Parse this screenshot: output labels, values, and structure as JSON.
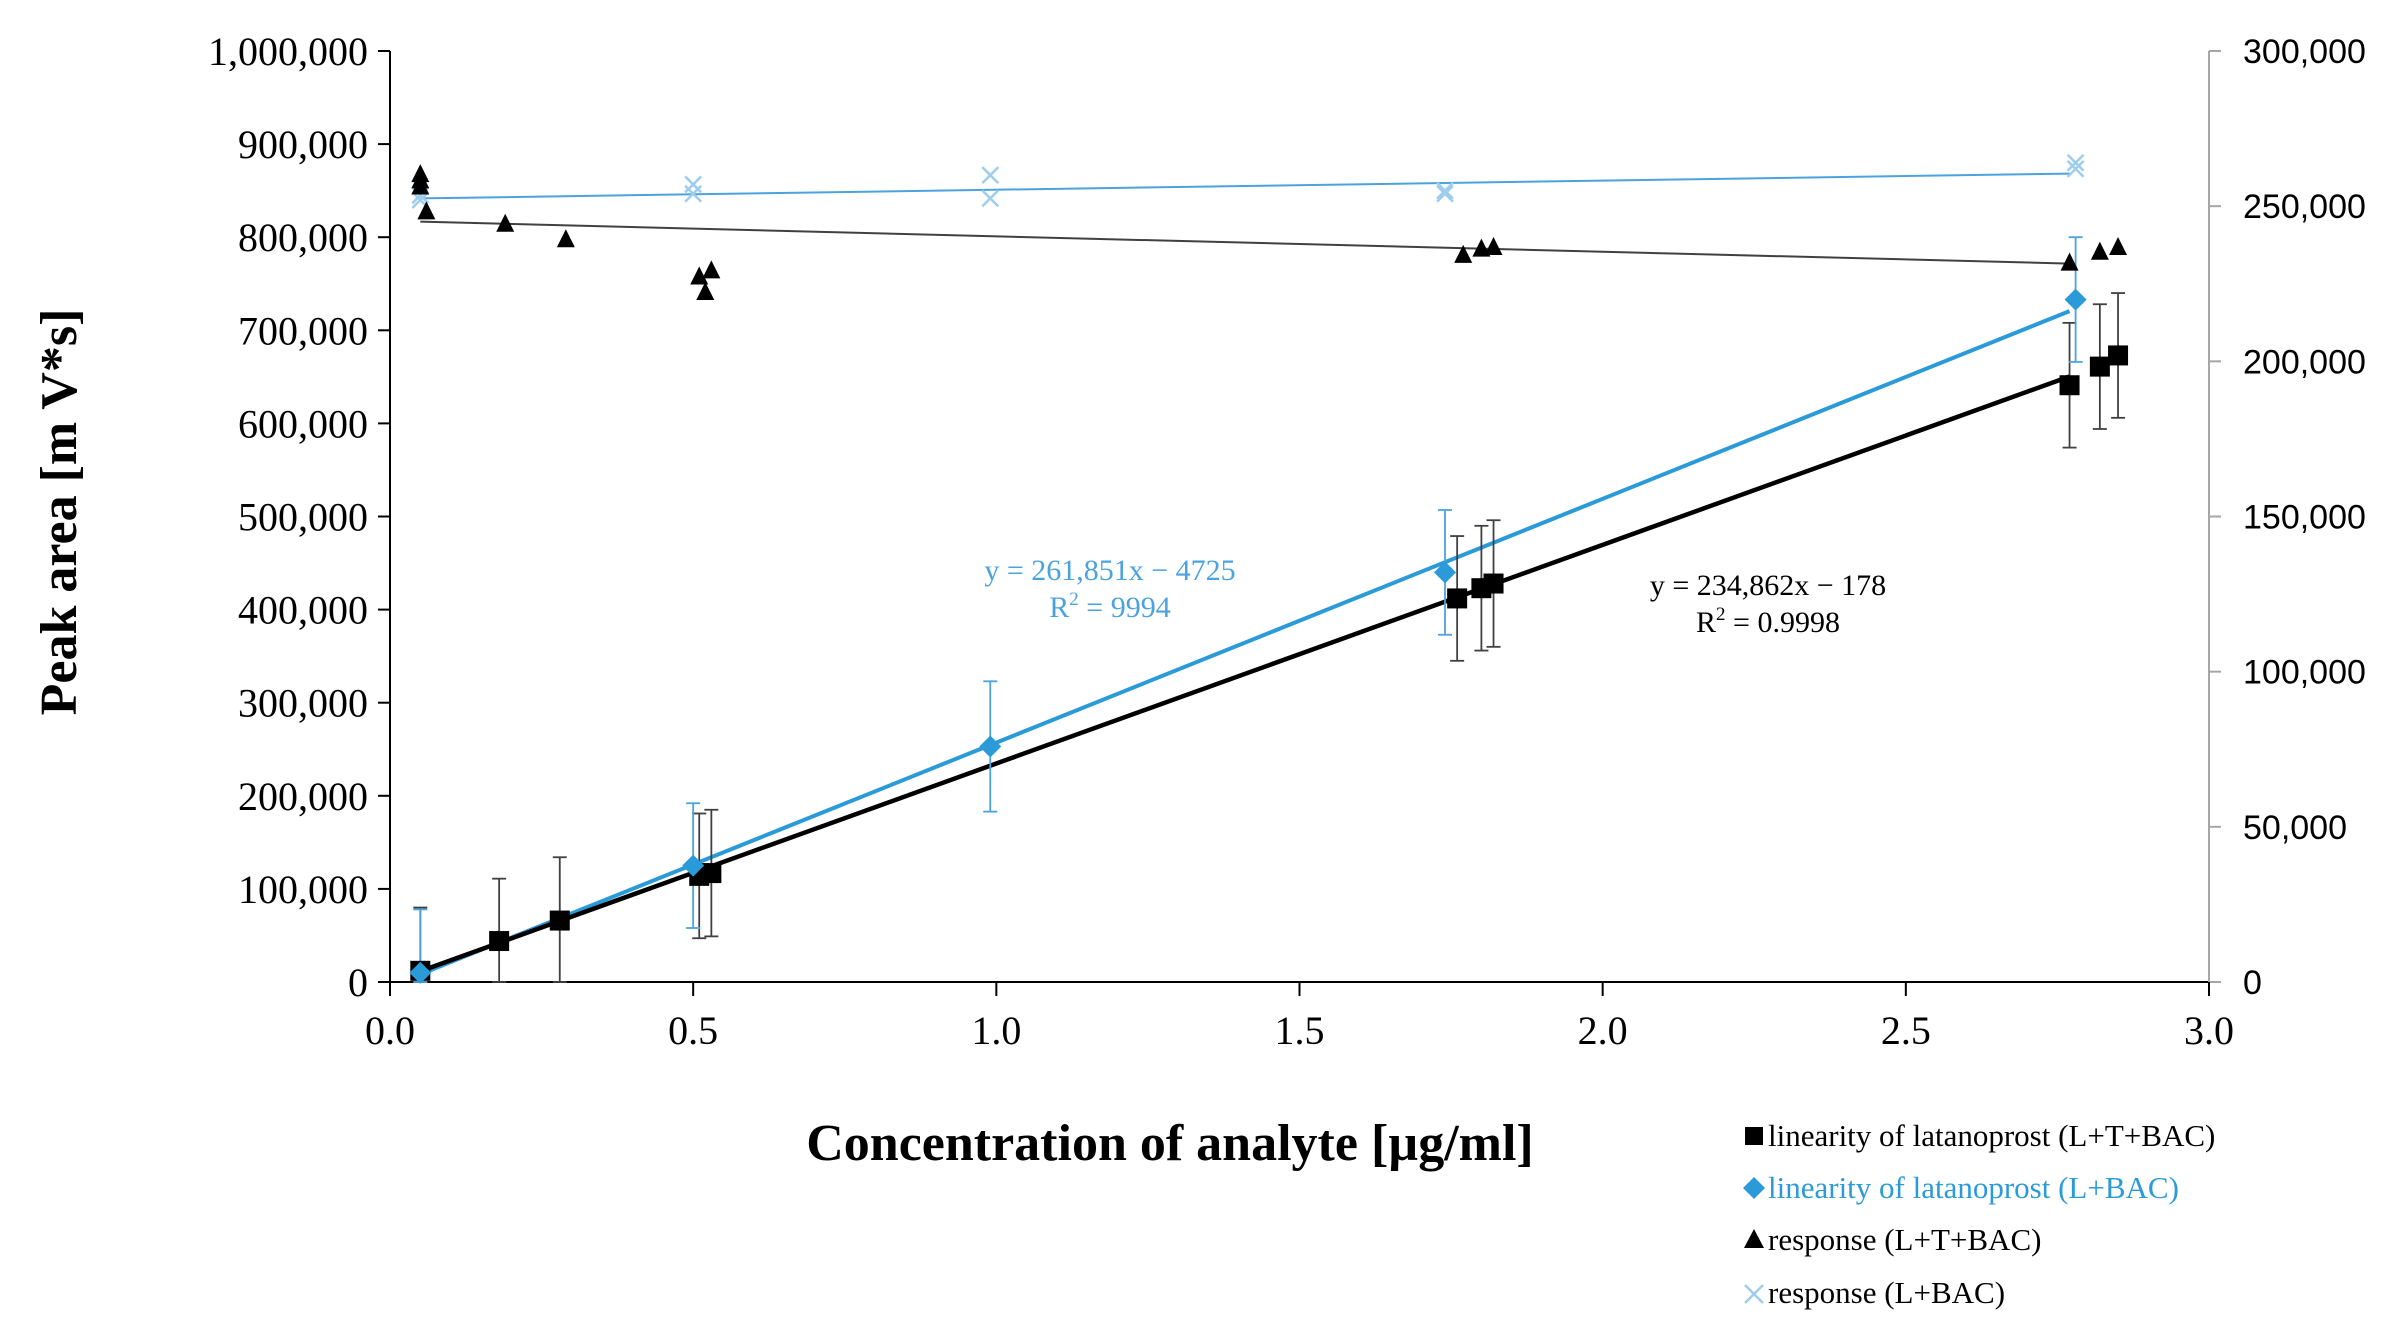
{
  "chart_data": {
    "type": "scatter",
    "xlabel": "Concentration of analyte [µg/ml]",
    "ylabel": "Peak area  [m V*s]",
    "xlim": [
      0,
      3
    ],
    "ylim_left": [
      0,
      1000000
    ],
    "ylim_right": [
      0,
      300000
    ],
    "x_ticks": [
      "0.0",
      "0.5",
      "1.0",
      "1.5",
      "2.0",
      "2.5",
      "3.0"
    ],
    "y_left_ticks": [
      "0",
      "100,000",
      "200,000",
      "300,000",
      "400,000",
      "500,000",
      "600,000",
      "700,000",
      "800,000",
      "900,000",
      "1,000,000"
    ],
    "y_right_ticks": [
      "0",
      "50,000",
      "100,000",
      "150,000",
      "200,000",
      "250,000",
      "300,000"
    ],
    "grid": false,
    "legend_position": "bottom-right",
    "colors": {
      "black_series": "#000000",
      "blue_series": "#2b9ad8",
      "blue_text": "#4aa3df",
      "response_blue": "#9fcdee"
    },
    "series": [
      {
        "name": "linearity of latanoprost (L+T+BAC)",
        "marker": "square",
        "axis": "left",
        "points": [
          {
            "x": 0.05,
            "y": 12000,
            "err": 68000
          },
          {
            "x": 0.18,
            "y": 44000,
            "err": 67000
          },
          {
            "x": 0.28,
            "y": 66000,
            "err": 68000
          },
          {
            "x": 0.51,
            "y": 114000,
            "err": 67000
          },
          {
            "x": 0.53,
            "y": 117000,
            "err": 68000
          },
          {
            "x": 1.76,
            "y": 412000,
            "err": 67000
          },
          {
            "x": 1.8,
            "y": 423000,
            "err": 67000
          },
          {
            "x": 1.82,
            "y": 428000,
            "err": 68000
          },
          {
            "x": 2.77,
            "y": 641000,
            "err": 67000
          },
          {
            "x": 2.82,
            "y": 661000,
            "err": 67000
          },
          {
            "x": 2.85,
            "y": 673000,
            "err": 67000
          }
        ],
        "trendline": {
          "slope": 234862,
          "intercept": -178,
          "x_range": [
            0.05,
            2.77
          ]
        },
        "equation": "y = 234,862x − 178",
        "r2_label": "R",
        "r2_value": " = 0.9998"
      },
      {
        "name": "linearity of latanoprost (L+BAC)",
        "marker": "diamond",
        "axis": "left",
        "points": [
          {
            "x": 0.05,
            "y": 10000,
            "err": 68000
          },
          {
            "x": 0.5,
            "y": 125000,
            "err": 67000
          },
          {
            "x": 0.99,
            "y": 253000,
            "err": 70000
          },
          {
            "x": 1.74,
            "y": 440000,
            "err": 67000
          },
          {
            "x": 2.78,
            "y": 733000,
            "err": 67000
          }
        ],
        "trendline": {
          "slope": 261851,
          "intercept": -4725,
          "x_range": [
            0.05,
            2.77
          ]
        },
        "equation": "y = 261,851x − 4725",
        "r2_label": "R",
        "r2_value": " = 9994"
      },
      {
        "name": "response (L+T+BAC)",
        "marker": "triangle",
        "axis": "right",
        "points": [
          {
            "x": 0.05,
            "y": 260000
          },
          {
            "x": 0.05,
            "y": 258000
          },
          {
            "x": 0.05,
            "y": 256000
          },
          {
            "x": 0.06,
            "y": 248000
          },
          {
            "x": 0.19,
            "y": 244000
          },
          {
            "x": 0.29,
            "y": 239000
          },
          {
            "x": 0.51,
            "y": 227000
          },
          {
            "x": 0.52,
            "y": 222000
          },
          {
            "x": 0.53,
            "y": 229000
          },
          {
            "x": 1.77,
            "y": 234000
          },
          {
            "x": 1.8,
            "y": 236000
          },
          {
            "x": 1.82,
            "y": 236500
          },
          {
            "x": 2.77,
            "y": 231500
          },
          {
            "x": 2.82,
            "y": 235000
          },
          {
            "x": 2.85,
            "y": 236500
          }
        ],
        "trendline": {
          "y_start": 245000,
          "y_end": 231500,
          "x_range": [
            0.05,
            2.77
          ]
        }
      },
      {
        "name": "response (L+BAC)",
        "marker": "cross",
        "axis": "right",
        "points": [
          {
            "x": 0.05,
            "y": 253500
          },
          {
            "x": 0.05,
            "y": 252000
          },
          {
            "x": 0.5,
            "y": 257000
          },
          {
            "x": 0.5,
            "y": 254000
          },
          {
            "x": 0.99,
            "y": 260000
          },
          {
            "x": 0.99,
            "y": 252500
          },
          {
            "x": 1.74,
            "y": 255000
          },
          {
            "x": 1.74,
            "y": 254000
          },
          {
            "x": 2.78,
            "y": 264000
          },
          {
            "x": 2.78,
            "y": 262000
          }
        ],
        "trendline": {
          "y_start": 252500,
          "y_end": 260500,
          "x_range": [
            0.05,
            2.77
          ]
        }
      }
    ]
  }
}
